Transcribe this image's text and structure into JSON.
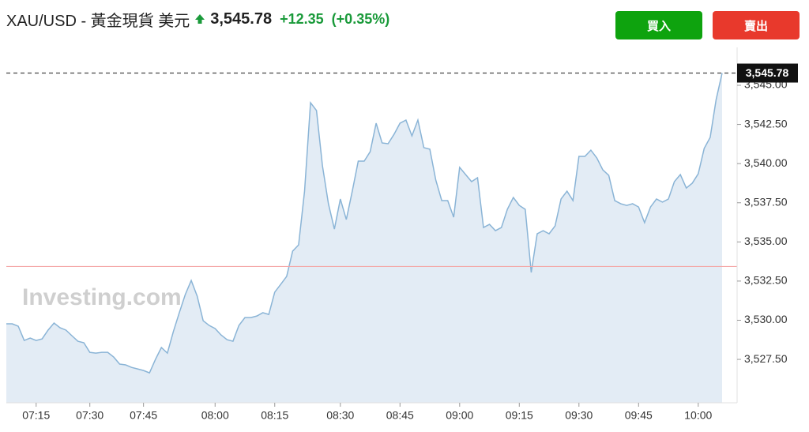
{
  "header": {
    "title": "XAU/USD - 黃金現貨 美元",
    "change": "+12.35",
    "change_pct": "(+0.35%)"
  },
  "buttons": [
    "買入",
    "賣出"
  ],
  "chart_data": {
    "type": "area",
    "watermark": "Investing.com",
    "line_color": "#8ab4d6",
    "fill_color": "#e3ecf5",
    "categories": [
      null,
      null,
      null,
      null,
      null,
      "07:15",
      null,
      null,
      null,
      null,
      null,
      null,
      null,
      null,
      "07:30",
      null,
      null,
      null,
      null,
      null,
      null,
      null,
      null,
      "07:45",
      null,
      null,
      null,
      null,
      null,
      null,
      null,
      null,
      null,
      null,
      null,
      "08:00",
      null,
      null,
      null,
      null,
      null,
      null,
      null,
      null,
      null,
      "08:15",
      null,
      null,
      null,
      null,
      null,
      null,
      null,
      null,
      null,
      null,
      "08:30",
      null,
      null,
      null,
      null,
      null,
      null,
      null,
      null,
      null,
      "08:45",
      null,
      null,
      null,
      null,
      null,
      null,
      null,
      null,
      null,
      "09:00",
      null,
      null,
      null,
      null,
      null,
      null,
      null,
      null,
      null,
      "09:15",
      null,
      null,
      null,
      null,
      null,
      null,
      null,
      null,
      null,
      "09:30",
      null,
      null,
      null,
      null,
      null,
      null,
      null,
      null,
      null,
      "09:45",
      null,
      null,
      null,
      null,
      null,
      null,
      null,
      null,
      null,
      "10:00",
      null,
      null,
      null,
      null
    ],
    "values": [
      3529.77,
      3529.77,
      3529.62,
      3528.71,
      3528.86,
      3528.71,
      3528.81,
      3529.37,
      3529.82,
      3529.52,
      3529.37,
      3529.01,
      3528.66,
      3528.56,
      3527.95,
      3527.9,
      3527.95,
      3527.95,
      3527.65,
      3527.2,
      3527.15,
      3526.99,
      3526.89,
      3526.79,
      3526.64,
      3527.5,
      3528.26,
      3527.9,
      3529.27,
      3530.48,
      3531.64,
      3532.54,
      3531.54,
      3529.97,
      3529.67,
      3529.47,
      3529.06,
      3528.76,
      3528.66,
      3529.67,
      3530.17,
      3530.17,
      3530.27,
      3530.48,
      3530.37,
      3531.79,
      3532.29,
      3532.8,
      3534.41,
      3534.81,
      3538.24,
      3543.89,
      3543.39,
      3539.86,
      3537.44,
      3535.82,
      3537.74,
      3536.43,
      3538.24,
      3540.16,
      3540.16,
      3540.76,
      3542.58,
      3541.32,
      3541.27,
      3541.87,
      3542.58,
      3542.78,
      3541.77,
      3542.78,
      3541.02,
      3540.92,
      3538.95,
      3537.64,
      3537.64,
      3536.58,
      3539.76,
      3539.3,
      3538.85,
      3539.1,
      3535.92,
      3536.12,
      3535.72,
      3535.92,
      3537.08,
      3537.84,
      3537.33,
      3537.08,
      3533.05,
      3535.52,
      3535.72,
      3535.52,
      3536.02,
      3537.74,
      3538.24,
      3537.64,
      3540.46,
      3540.46,
      3540.86,
      3540.36,
      3539.6,
      3539.25,
      3537.64,
      3537.44,
      3537.33,
      3537.44,
      3537.23,
      3536.23,
      3537.23,
      3537.74,
      3537.54,
      3537.74,
      3538.85,
      3539.3,
      3538.44,
      3538.75,
      3539.35,
      3540.97,
      3541.67,
      3544.09,
      3545.78
    ],
    "ylim": [
      3524.73,
      3547.42
    ],
    "yticks": [
      {
        "value": 3527.5,
        "label": "3,527.50"
      },
      {
        "value": 3530,
        "label": "3,530.00"
      },
      {
        "value": 3532.5,
        "label": "3,532.50"
      },
      {
        "value": 3535,
        "label": "3,535.00"
      },
      {
        "value": 3537.5,
        "label": "3,537.50"
      },
      {
        "value": 3540,
        "label": "3,540.00"
      },
      {
        "value": 3542.5,
        "label": "3,542.50"
      },
      {
        "value": 3545,
        "label": "3,545.00"
      }
    ],
    "last_price": {
      "value": 3545.78,
      "label": "3,545.78"
    },
    "reference_line": {
      "value": 3533.43,
      "color": "#f4a6a6"
    }
  }
}
